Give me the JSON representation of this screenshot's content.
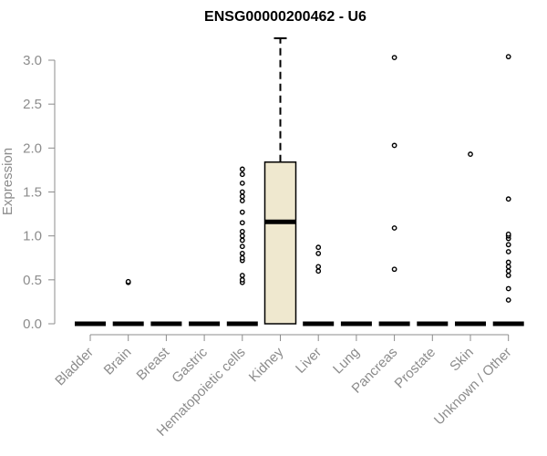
{
  "chart_data": {
    "type": "box",
    "title": "ENSG00000200462 - U6",
    "ylabel": "Expression",
    "xlabel": "",
    "ylim": [
      0,
      3.3
    ],
    "yticks": [
      0.0,
      0.5,
      1.0,
      1.5,
      2.0,
      2.5,
      3.0
    ],
    "ytick_labels": [
      "0.0",
      "0.5",
      "1.0",
      "1.5",
      "2.0",
      "2.5",
      "3.0"
    ],
    "grid": false,
    "colors": {
      "box_fill": "#efe8cf",
      "box_stroke": "#000000",
      "axis": "#8c8c8c"
    },
    "categories": [
      "Bladder",
      "Brain",
      "Breast",
      "Gastric",
      "Hematopoietic cells",
      "Kidney",
      "Liver",
      "Lung",
      "Pancreas",
      "Prostate",
      "Skin",
      "Unknown / Other"
    ],
    "boxes": [
      {
        "category": "Bladder",
        "q1": 0,
        "median": 0,
        "q3": 0,
        "whisker_low": 0,
        "whisker_high": 0,
        "outliers": []
      },
      {
        "category": "Brain",
        "q1": 0,
        "median": 0,
        "q3": 0,
        "whisker_low": 0,
        "whisker_high": 0,
        "outliers": [
          0.47,
          0.48
        ]
      },
      {
        "category": "Breast",
        "q1": 0,
        "median": 0,
        "q3": 0,
        "whisker_low": 0,
        "whisker_high": 0,
        "outliers": []
      },
      {
        "category": "Gastric",
        "q1": 0,
        "median": 0,
        "q3": 0,
        "whisker_low": 0,
        "whisker_high": 0,
        "outliers": []
      },
      {
        "category": "Hematopoietic cells",
        "q1": 0,
        "median": 0,
        "q3": 0,
        "whisker_low": 0,
        "whisker_high": 0,
        "outliers": [
          0.47,
          0.5,
          0.55,
          0.72,
          0.75,
          0.8,
          0.88,
          0.95,
          1.0,
          1.05,
          1.15,
          1.27,
          1.4,
          1.45,
          1.5,
          1.6,
          1.7,
          1.76
        ]
      },
      {
        "category": "Kidney",
        "q1": 0,
        "median": 1.16,
        "q3": 1.84,
        "whisker_low": 0,
        "whisker_high": 3.25,
        "outliers": []
      },
      {
        "category": "Liver",
        "q1": 0,
        "median": 0,
        "q3": 0,
        "whisker_low": 0,
        "whisker_high": 0,
        "outliers": [
          0.6,
          0.65,
          0.8,
          0.87
        ]
      },
      {
        "category": "Lung",
        "q1": 0,
        "median": 0,
        "q3": 0,
        "whisker_low": 0,
        "whisker_high": 0,
        "outliers": []
      },
      {
        "category": "Pancreas",
        "q1": 0,
        "median": 0,
        "q3": 0,
        "whisker_low": 0,
        "whisker_high": 0,
        "outliers": [
          0.62,
          1.09,
          2.03,
          3.03
        ]
      },
      {
        "category": "Prostate",
        "q1": 0,
        "median": 0,
        "q3": 0,
        "whisker_low": 0,
        "whisker_high": 0,
        "outliers": []
      },
      {
        "category": "Skin",
        "q1": 0,
        "median": 0,
        "q3": 0,
        "whisker_low": 0,
        "whisker_high": 0,
        "outliers": [
          1.93
        ]
      },
      {
        "category": "Unknown / Other",
        "q1": 0,
        "median": 0,
        "q3": 0,
        "whisker_low": 0,
        "whisker_high": 0,
        "outliers": [
          0.27,
          0.4,
          0.55,
          0.6,
          0.65,
          0.7,
          0.82,
          0.9,
          0.97,
          1.0,
          1.02,
          1.42,
          3.04
        ]
      }
    ]
  }
}
